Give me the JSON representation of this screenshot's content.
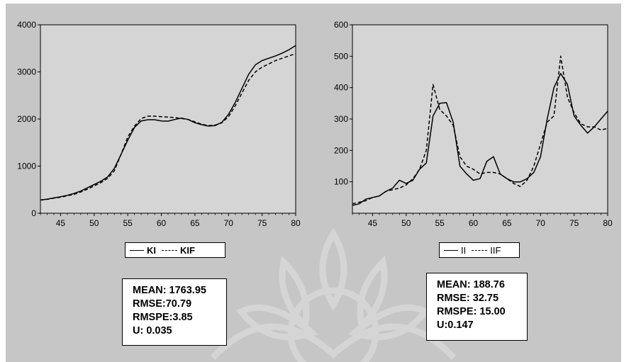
{
  "chart_data": [
    {
      "type": "line",
      "title": "",
      "xlabel": "",
      "ylabel": "",
      "xlim": [
        42,
        80
      ],
      "ylim": [
        0,
        4000
      ],
      "x_ticks": [
        45,
        50,
        55,
        60,
        65,
        70,
        75,
        80
      ],
      "y_ticks": [
        0,
        1000,
        2000,
        3000,
        4000
      ],
      "grid": false,
      "legend": "below",
      "series": [
        {
          "name": "KI",
          "style": "solid",
          "x": [
            42,
            43,
            44,
            45,
            46,
            47,
            48,
            49,
            50,
            51,
            52,
            53,
            54,
            55,
            56,
            57,
            58,
            59,
            60,
            61,
            62,
            63,
            64,
            65,
            66,
            67,
            68,
            69,
            70,
            71,
            72,
            73,
            74,
            75,
            76,
            77,
            78,
            79,
            80
          ],
          "values": [
            280,
            300,
            325,
            350,
            380,
            420,
            470,
            540,
            610,
            680,
            770,
            950,
            1250,
            1550,
            1820,
            1960,
            1985,
            1985,
            1960,
            1955,
            1990,
            2020,
            1990,
            1920,
            1880,
            1850,
            1860,
            1930,
            2100,
            2350,
            2650,
            2950,
            3150,
            3240,
            3290,
            3340,
            3400,
            3470,
            3560
          ]
        },
        {
          "name": "KIF",
          "style": "dashed",
          "x": [
            42,
            43,
            44,
            45,
            46,
            47,
            48,
            49,
            50,
            51,
            52,
            53,
            54,
            55,
            56,
            57,
            58,
            59,
            60,
            61,
            62,
            63,
            64,
            65,
            66,
            67,
            68,
            69,
            70,
            71,
            72,
            73,
            74,
            75,
            76,
            77,
            78,
            79,
            80
          ],
          "values": [
            280,
            295,
            320,
            340,
            370,
            400,
            450,
            510,
            580,
            650,
            740,
            900,
            1250,
            1620,
            1850,
            2010,
            2060,
            2060,
            2050,
            2040,
            2030,
            2010,
            1990,
            1940,
            1890,
            1860,
            1870,
            1920,
            2050,
            2280,
            2550,
            2820,
            3000,
            3100,
            3170,
            3240,
            3290,
            3340,
            3390
          ]
        }
      ],
      "stats": [
        "MEAN: 1763.95",
        "RMSE:70.79",
        "RMSPE:3.85",
        "U: 0.035"
      ]
    },
    {
      "type": "line",
      "title": "",
      "xlabel": "",
      "ylabel": "",
      "xlim": [
        42,
        80
      ],
      "ylim": [
        0,
        600
      ],
      "x_ticks": [
        45,
        50,
        55,
        60,
        65,
        70,
        75,
        80
      ],
      "y_ticks": [
        100,
        200,
        300,
        400,
        500,
        600
      ],
      "grid": false,
      "legend": "below",
      "series": [
        {
          "name": "II",
          "style": "solid",
          "x": [
            42,
            43,
            44,
            45,
            46,
            47,
            48,
            49,
            50,
            51,
            52,
            53,
            54,
            55,
            56,
            57,
            58,
            59,
            60,
            61,
            62,
            63,
            64,
            65,
            66,
            67,
            68,
            69,
            70,
            71,
            72,
            73,
            74,
            75,
            76,
            77,
            78,
            79,
            80
          ],
          "values": [
            25,
            30,
            45,
            50,
            55,
            70,
            80,
            105,
            95,
            105,
            140,
            160,
            310,
            350,
            352,
            290,
            150,
            125,
            105,
            110,
            165,
            180,
            125,
            110,
            100,
            100,
            110,
            130,
            180,
            300,
            400,
            445,
            410,
            310,
            280,
            255,
            275,
            300,
            325
          ]
        },
        {
          "name": "IIF",
          "style": "dashed",
          "x": [
            42,
            43,
            44,
            45,
            46,
            47,
            48,
            49,
            50,
            51,
            52,
            53,
            54,
            55,
            56,
            57,
            58,
            59,
            60,
            61,
            62,
            63,
            64,
            65,
            66,
            67,
            68,
            69,
            70,
            71,
            72,
            73,
            74,
            75,
            76,
            77,
            78,
            79,
            80
          ],
          "values": [
            30,
            35,
            40,
            50,
            55,
            70,
            75,
            80,
            90,
            110,
            140,
            200,
            410,
            330,
            310,
            280,
            180,
            150,
            140,
            125,
            130,
            130,
            125,
            110,
            95,
            85,
            105,
            150,
            220,
            290,
            310,
            500,
            370,
            320,
            285,
            275,
            275,
            265,
            270
          ]
        }
      ],
      "stats": [
        "MEAN: 188.76",
        "RMSE: 32.75",
        "RMSPE: 15.00",
        "U:0.147"
      ]
    }
  ]
}
